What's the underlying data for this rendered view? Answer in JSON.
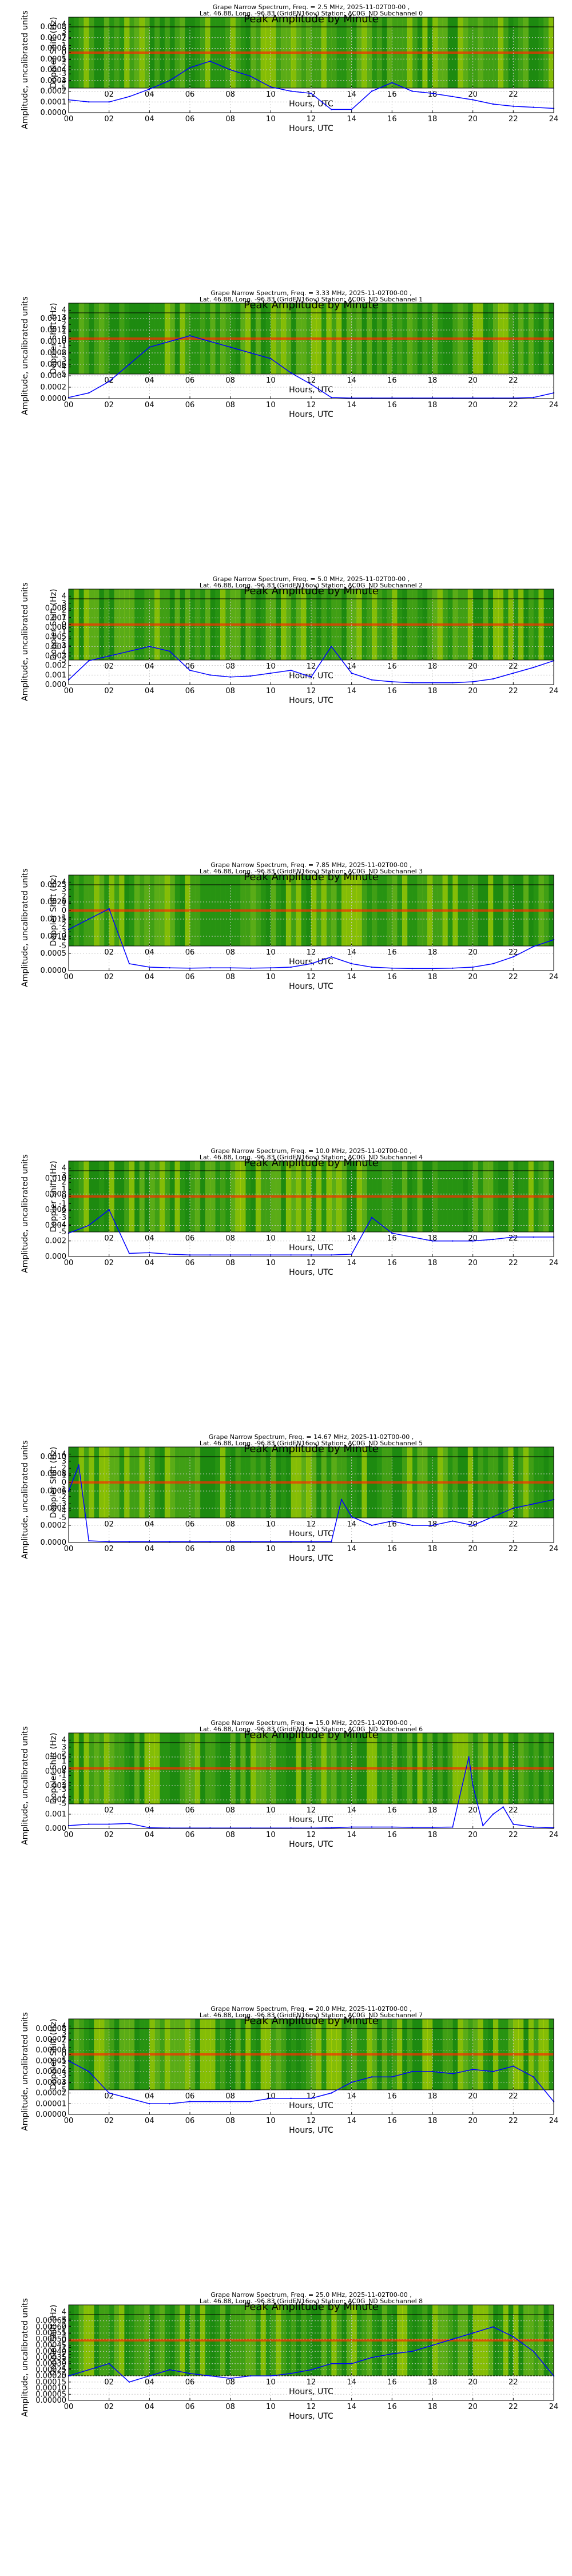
{
  "page": {
    "amp_title": "Peak Amplitude by Minute",
    "xlabel": "Hours, UTC",
    "spec_ylabel": "Doppler Shift (Hz)",
    "amp_ylabel": "Amplitude, uncalibrated units",
    "spec_xticks": [
      "02",
      "04",
      "06",
      "08",
      "10",
      "12",
      "14",
      "16",
      "18",
      "20",
      "22"
    ],
    "amp_xticks": [
      "00",
      "02",
      "04",
      "06",
      "08",
      "10",
      "12",
      "14",
      "16",
      "18",
      "20",
      "22",
      "24"
    ],
    "spec_yticks": [
      "4",
      "3",
      "2",
      "1",
      "0",
      "-1",
      "-2",
      "-3",
      "-4",
      "-5"
    ],
    "colors": {
      "amp_line": "#0000ff",
      "spec_low": "#1e8a10",
      "spec_mid": "#d8e800",
      "spec_high": "#ff2a00"
    }
  },
  "chart_data": [
    {
      "type": "heatmap",
      "title": "Grape Narrow Spectrum, Freq. = 2.5 MHz, 2025-11-02T00-00 ,",
      "subtitle": "Lat.  46.88, Long. -96.83 (GridEN16ov) Station: AC0G_ND Subchannel 0",
      "xlabel": "Hours, UTC",
      "ylabel": "Doppler Shift (Hz)",
      "xlim": [
        0,
        24
      ],
      "ylim": [
        -5,
        5
      ]
    },
    {
      "type": "line",
      "title": "Peak Amplitude by Minute",
      "xlabel": "Hours, UTC",
      "ylabel": "Amplitude, uncalibrated units",
      "xlim": [
        0,
        24
      ],
      "ylim": [
        0,
        0.0008
      ],
      "yticks": [
        "0.0000",
        "0.0001",
        "0.0002",
        "0.0003",
        "0.0004",
        "0.0005",
        "0.0006",
        "0.0007",
        "0.0008"
      ],
      "x": [
        0,
        1,
        2,
        3,
        4,
        5,
        6,
        7,
        8,
        9,
        10,
        11,
        12,
        13,
        14,
        15,
        16,
        17,
        18,
        19,
        20,
        21,
        22,
        23,
        24
      ],
      "values": [
        0.00012,
        0.0001,
        0.0001,
        0.00015,
        0.00022,
        0.0003,
        0.00042,
        0.00048,
        0.0004,
        0.00034,
        0.00024,
        0.0002,
        0.00018,
        3e-05,
        3e-05,
        0.0002,
        0.00028,
        0.0002,
        0.00018,
        0.00015,
        0.00012,
        8e-05,
        6e-05,
        5e-05,
        4e-05
      ]
    },
    {
      "type": "heatmap",
      "title": "Grape Narrow Spectrum, Freq. = 3.33 MHz, 2025-11-02T00-00 ,",
      "subtitle": "Lat.  46.88, Long. -96.83 (GridEN16ov) Station: AC0G_ND Subchannel 1",
      "xlabel": "Hours, UTC",
      "ylabel": "Doppler Shift (Hz)",
      "xlim": [
        0,
        24
      ],
      "ylim": [
        -5,
        5
      ]
    },
    {
      "type": "line",
      "title": "Peak Amplitude by Minute",
      "xlabel": "Hours, UTC",
      "ylabel": "Amplitude, uncalibrated units",
      "xlim": [
        0,
        24
      ],
      "ylim": [
        0,
        0.0015
      ],
      "yticks": [
        "0.0000",
        "0.0002",
        "0.0004",
        "0.0006",
        "0.0008",
        "0.0010",
        "0.0012",
        "0.0014"
      ],
      "x": [
        0,
        1,
        2,
        3,
        4,
        5,
        6,
        7,
        8,
        9,
        10,
        11,
        12,
        13,
        14,
        15,
        16,
        17,
        18,
        19,
        20,
        21,
        22,
        23,
        24
      ],
      "values": [
        2e-05,
        0.0001,
        0.0003,
        0.0006,
        0.0009,
        0.001,
        0.0011,
        0.001,
        0.0009,
        0.0008,
        0.0007,
        0.00045,
        0.00025,
        2e-05,
        1e-05,
        1e-05,
        1e-05,
        1e-05,
        1e-05,
        1e-05,
        1e-05,
        1e-05,
        1e-05,
        2e-05,
        0.0001
      ]
    },
    {
      "type": "heatmap",
      "title": "Grape Narrow Spectrum, Freq. = 5.0 MHz, 2025-11-02T00-00 ,",
      "subtitle": "Lat.  46.88, Long. -96.83 (GridEN16ov) Station: AC0G_ND Subchannel 2",
      "xlabel": "Hours, UTC",
      "ylabel": "Doppler Shift (Hz)",
      "xlim": [
        0,
        24
      ],
      "ylim": [
        -5,
        5
      ]
    },
    {
      "type": "line",
      "title": "Peak Amplitude by Minute",
      "xlabel": "Hours, UTC",
      "ylabel": "Amplitude, uncalibrated units",
      "xlim": [
        0,
        24
      ],
      "ylim": [
        0,
        0.009
      ],
      "yticks": [
        "0.000",
        "0.001",
        "0.002",
        "0.003",
        "0.004",
        "0.005",
        "0.006",
        "0.007",
        "0.008"
      ],
      "x": [
        0,
        1,
        2,
        3,
        4,
        5,
        6,
        7,
        8,
        9,
        10,
        11,
        12,
        13,
        14,
        15,
        16,
        17,
        18,
        19,
        20,
        21,
        22,
        23,
        24
      ],
      "values": [
        0.0005,
        0.0025,
        0.003,
        0.0035,
        0.004,
        0.0035,
        0.0015,
        0.001,
        0.0008,
        0.0009,
        0.0012,
        0.0015,
        0.0008,
        0.004,
        0.0012,
        0.0005,
        0.0003,
        0.0002,
        0.0002,
        0.0002,
        0.0003,
        0.0006,
        0.0012,
        0.0018,
        0.0025
      ]
    },
    {
      "type": "heatmap",
      "title": "Grape Narrow Spectrum, Freq. = 7.85 MHz, 2025-11-02T00-00 ,",
      "subtitle": "Lat.  46.88, Long. -96.83 (GridEN16ov) Station: AC0G_ND Subchannel 3",
      "xlabel": "Hours, UTC",
      "ylabel": "Doppler Shift (Hz)",
      "xlim": [
        0,
        24
      ],
      "ylim": [
        -5,
        5
      ]
    },
    {
      "type": "line",
      "title": "Peak Amplitude by Minute",
      "xlabel": "Hours, UTC",
      "ylabel": "Amplitude, uncalibrated units",
      "xlim": [
        0,
        24
      ],
      "ylim": [
        0,
        0.0025
      ],
      "yticks": [
        "0.0000",
        "0.0005",
        "0.0010",
        "0.0015",
        "0.0020",
        "0.0025"
      ],
      "x": [
        0,
        1,
        2,
        3,
        4,
        5,
        6,
        7,
        8,
        9,
        10,
        11,
        12,
        13,
        14,
        15,
        16,
        17,
        18,
        19,
        20,
        21,
        22,
        23,
        24
      ],
      "values": [
        0.0012,
        0.0015,
        0.0018,
        0.0002,
        0.0001,
        8e-05,
        7e-05,
        8e-05,
        8e-05,
        7e-05,
        8e-05,
        0.0001,
        0.0002,
        0.0004,
        0.0002,
        0.0001,
        7e-05,
        6e-05,
        6e-05,
        7e-05,
        0.0001,
        0.0002,
        0.0004,
        0.0007,
        0.0009
      ]
    },
    {
      "type": "heatmap",
      "title": "Grape Narrow Spectrum, Freq. = 10.0 MHz, 2025-11-02T00-00 ,",
      "subtitle": "Lat.  46.88, Long. -96.83 (GridEN16ov) Station: AC0G_ND Subchannel 4",
      "xlabel": "Hours, UTC",
      "ylabel": "Doppler Shift (Hz)",
      "xlim": [
        0,
        24
      ],
      "ylim": [
        -5,
        5
      ]
    },
    {
      "type": "line",
      "title": "Peak Amplitude by Minute",
      "xlabel": "Hours, UTC",
      "ylabel": "Amplitude, uncalibrated units",
      "xlim": [
        0,
        24
      ],
      "ylim": [
        0,
        0.011
      ],
      "yticks": [
        "0.000",
        "0.002",
        "0.004",
        "0.006",
        "0.008",
        "0.010"
      ],
      "x": [
        0,
        1,
        2,
        3,
        4,
        5,
        6,
        7,
        8,
        9,
        10,
        11,
        12,
        13,
        14,
        15,
        16,
        17,
        18,
        19,
        20,
        21,
        22,
        23,
        24
      ],
      "values": [
        0.003,
        0.004,
        0.006,
        0.0004,
        0.0005,
        0.0003,
        0.0002,
        0.0002,
        0.0002,
        0.0002,
        0.0002,
        0.0002,
        0.0002,
        0.0002,
        0.0003,
        0.005,
        0.003,
        0.0025,
        0.002,
        0.002,
        0.002,
        0.0022,
        0.0025,
        0.0025,
        0.0025
      ]
    },
    {
      "type": "heatmap",
      "title": "Grape Narrow Spectrum, Freq. = 14.67 MHz, 2025-11-02T00-00 ,",
      "subtitle": "Lat.  46.88, Long. -96.83 (GridEN16ov) Station: AC0G_ND Subchannel 5",
      "xlabel": "Hours, UTC",
      "ylabel": "Doppler Shift (Hz)",
      "xlim": [
        0,
        24
      ],
      "ylim": [
        -5,
        5
      ]
    },
    {
      "type": "line",
      "title": "Peak Amplitude by Minute",
      "xlabel": "Hours, UTC",
      "ylabel": "Amplitude, uncalibrated units",
      "xlim": [
        0,
        24
      ],
      "ylim": [
        0,
        0.001
      ],
      "yticks": [
        "0.0000",
        "0.0002",
        "0.0004",
        "0.0006",
        "0.0008",
        "0.0010"
      ],
      "x": [
        0,
        0.5,
        1,
        2,
        3,
        4,
        5,
        6,
        7,
        8,
        9,
        10,
        11,
        12,
        13,
        13.5,
        14,
        15,
        16,
        17,
        18,
        19,
        20,
        21,
        22,
        23,
        24
      ],
      "values": [
        0.0006,
        0.0009,
        2e-05,
        1e-05,
        1e-05,
        1e-05,
        1e-05,
        1e-05,
        1e-05,
        1e-05,
        1e-05,
        1e-05,
        1e-05,
        1e-05,
        1e-05,
        0.0005,
        0.0003,
        0.0002,
        0.00025,
        0.0002,
        0.0002,
        0.00025,
        0.0002,
        0.0003,
        0.0004,
        0.00045,
        0.0005
      ]
    },
    {
      "type": "heatmap",
      "title": "Grape Narrow Spectrum, Freq. = 15.0 MHz, 2025-11-02T00-00 ,",
      "subtitle": "Lat.  46.88, Long. -96.83 (GridEN16ov) Station: AC0G_ND Subchannel 6",
      "xlabel": "Hours, UTC",
      "ylabel": "Doppler Shift (Hz)",
      "xlim": [
        0,
        24
      ],
      "ylim": [
        -5,
        5
      ]
    },
    {
      "type": "line",
      "title": "Peak Amplitude by Minute",
      "xlabel": "Hours, UTC",
      "ylabel": "Amplitude, uncalibrated units",
      "xlim": [
        0,
        24
      ],
      "ylim": [
        0,
        0.006
      ],
      "yticks": [
        "0.000",
        "0.001",
        "0.002",
        "0.003",
        "0.004",
        "0.005"
      ],
      "x": [
        0,
        1,
        2,
        3,
        4,
        5,
        6,
        7,
        8,
        9,
        10,
        11,
        12,
        13,
        14,
        15,
        16,
        17,
        18,
        19,
        19.8,
        20,
        20.5,
        21,
        21.5,
        22,
        23,
        24
      ],
      "values": [
        0.0002,
        0.0003,
        0.0003,
        0.00035,
        5e-05,
        3e-05,
        3e-05,
        3e-05,
        3e-05,
        3e-05,
        3e-05,
        3e-05,
        3e-05,
        5e-05,
        0.0001,
        0.0001,
        0.0001,
        8e-05,
        8e-05,
        0.0001,
        0.005,
        0.003,
        0.0002,
        0.001,
        0.0015,
        0.0003,
        0.0001,
        5e-05
      ]
    },
    {
      "type": "heatmap",
      "title": "Grape Narrow Spectrum, Freq. = 20.0 MHz, 2025-11-02T00-00 ,",
      "subtitle": "Lat.  46.88, Long. -96.83 (GridEN16ov) Station: AC0G_ND Subchannel 7",
      "xlabel": "Hours, UTC",
      "ylabel": "Doppler Shift (Hz)",
      "xlim": [
        0,
        24
      ],
      "ylim": [
        -5,
        5
      ]
    },
    {
      "type": "line",
      "title": "Peak Amplitude by Minute",
      "xlabel": "Hours, UTC",
      "ylabel": "Amplitude, uncalibrated units",
      "xlim": [
        0,
        24
      ],
      "ylim": [
        0,
        8e-05
      ],
      "yticks": [
        "0.00000",
        "0.00001",
        "0.00002",
        "0.00003",
        "0.00004",
        "0.00005",
        "0.00006",
        "0.00007",
        "0.00008"
      ],
      "x": [
        0,
        1,
        2,
        3,
        4,
        5,
        6,
        7,
        8,
        9,
        10,
        11,
        12,
        13,
        14,
        15,
        16,
        17,
        18,
        19,
        20,
        21,
        22,
        23,
        24
      ],
      "values": [
        5e-05,
        4e-05,
        2e-05,
        1.5e-05,
        1e-05,
        1e-05,
        1.2e-05,
        1.2e-05,
        1.2e-05,
        1.2e-05,
        1.5e-05,
        1.5e-05,
        1.5e-05,
        2e-05,
        3e-05,
        3.5e-05,
        3.5e-05,
        4e-05,
        4e-05,
        3.8e-05,
        4.2e-05,
        4e-05,
        4.5e-05,
        3.5e-05,
        1.2e-05
      ]
    },
    {
      "type": "heatmap",
      "title": "Grape Narrow Spectrum, Freq. = 25.0 MHz, 2025-11-02T00-00 ,",
      "subtitle": "Lat.  46.88, Long. -96.83 (GridEN16ov) Station: AC0G_ND Subchannel 8",
      "xlabel": "Hours, UTC",
      "ylabel": "Doppler Shift (Hz)",
      "xlim": [
        0,
        24
      ],
      "ylim": [
        -5,
        5
      ]
    },
    {
      "type": "line",
      "title": "Peak Amplitude by Minute",
      "xlabel": "Hours, UTC",
      "ylabel": "Amplitude, uncalibrated units",
      "xlim": [
        0,
        24
      ],
      "ylim": [
        0,
        0.0007
      ],
      "yticks": [
        "0.00000",
        "0.00005",
        "0.00010",
        "0.00015",
        "0.00020",
        "0.00025",
        "0.00030",
        "0.00035",
        "0.00040",
        "0.00045",
        "0.00050",
        "0.00055",
        "0.00060",
        "0.00065"
      ],
      "x": [
        0,
        1,
        2,
        3,
        4,
        5,
        6,
        7,
        8,
        9,
        10,
        11,
        12,
        13,
        14,
        15,
        16,
        17,
        18,
        19,
        20,
        21,
        22,
        23,
        24
      ],
      "values": [
        0.0002,
        0.00025,
        0.0003,
        0.00015,
        0.0002,
        0.00025,
        0.00022,
        0.0002,
        0.00018,
        0.0002,
        0.0002,
        0.00022,
        0.00025,
        0.0003,
        0.0003,
        0.00035,
        0.00038,
        0.0004,
        0.00045,
        0.0005,
        0.00055,
        0.0006,
        0.00052,
        0.0004,
        0.0002
      ]
    }
  ]
}
